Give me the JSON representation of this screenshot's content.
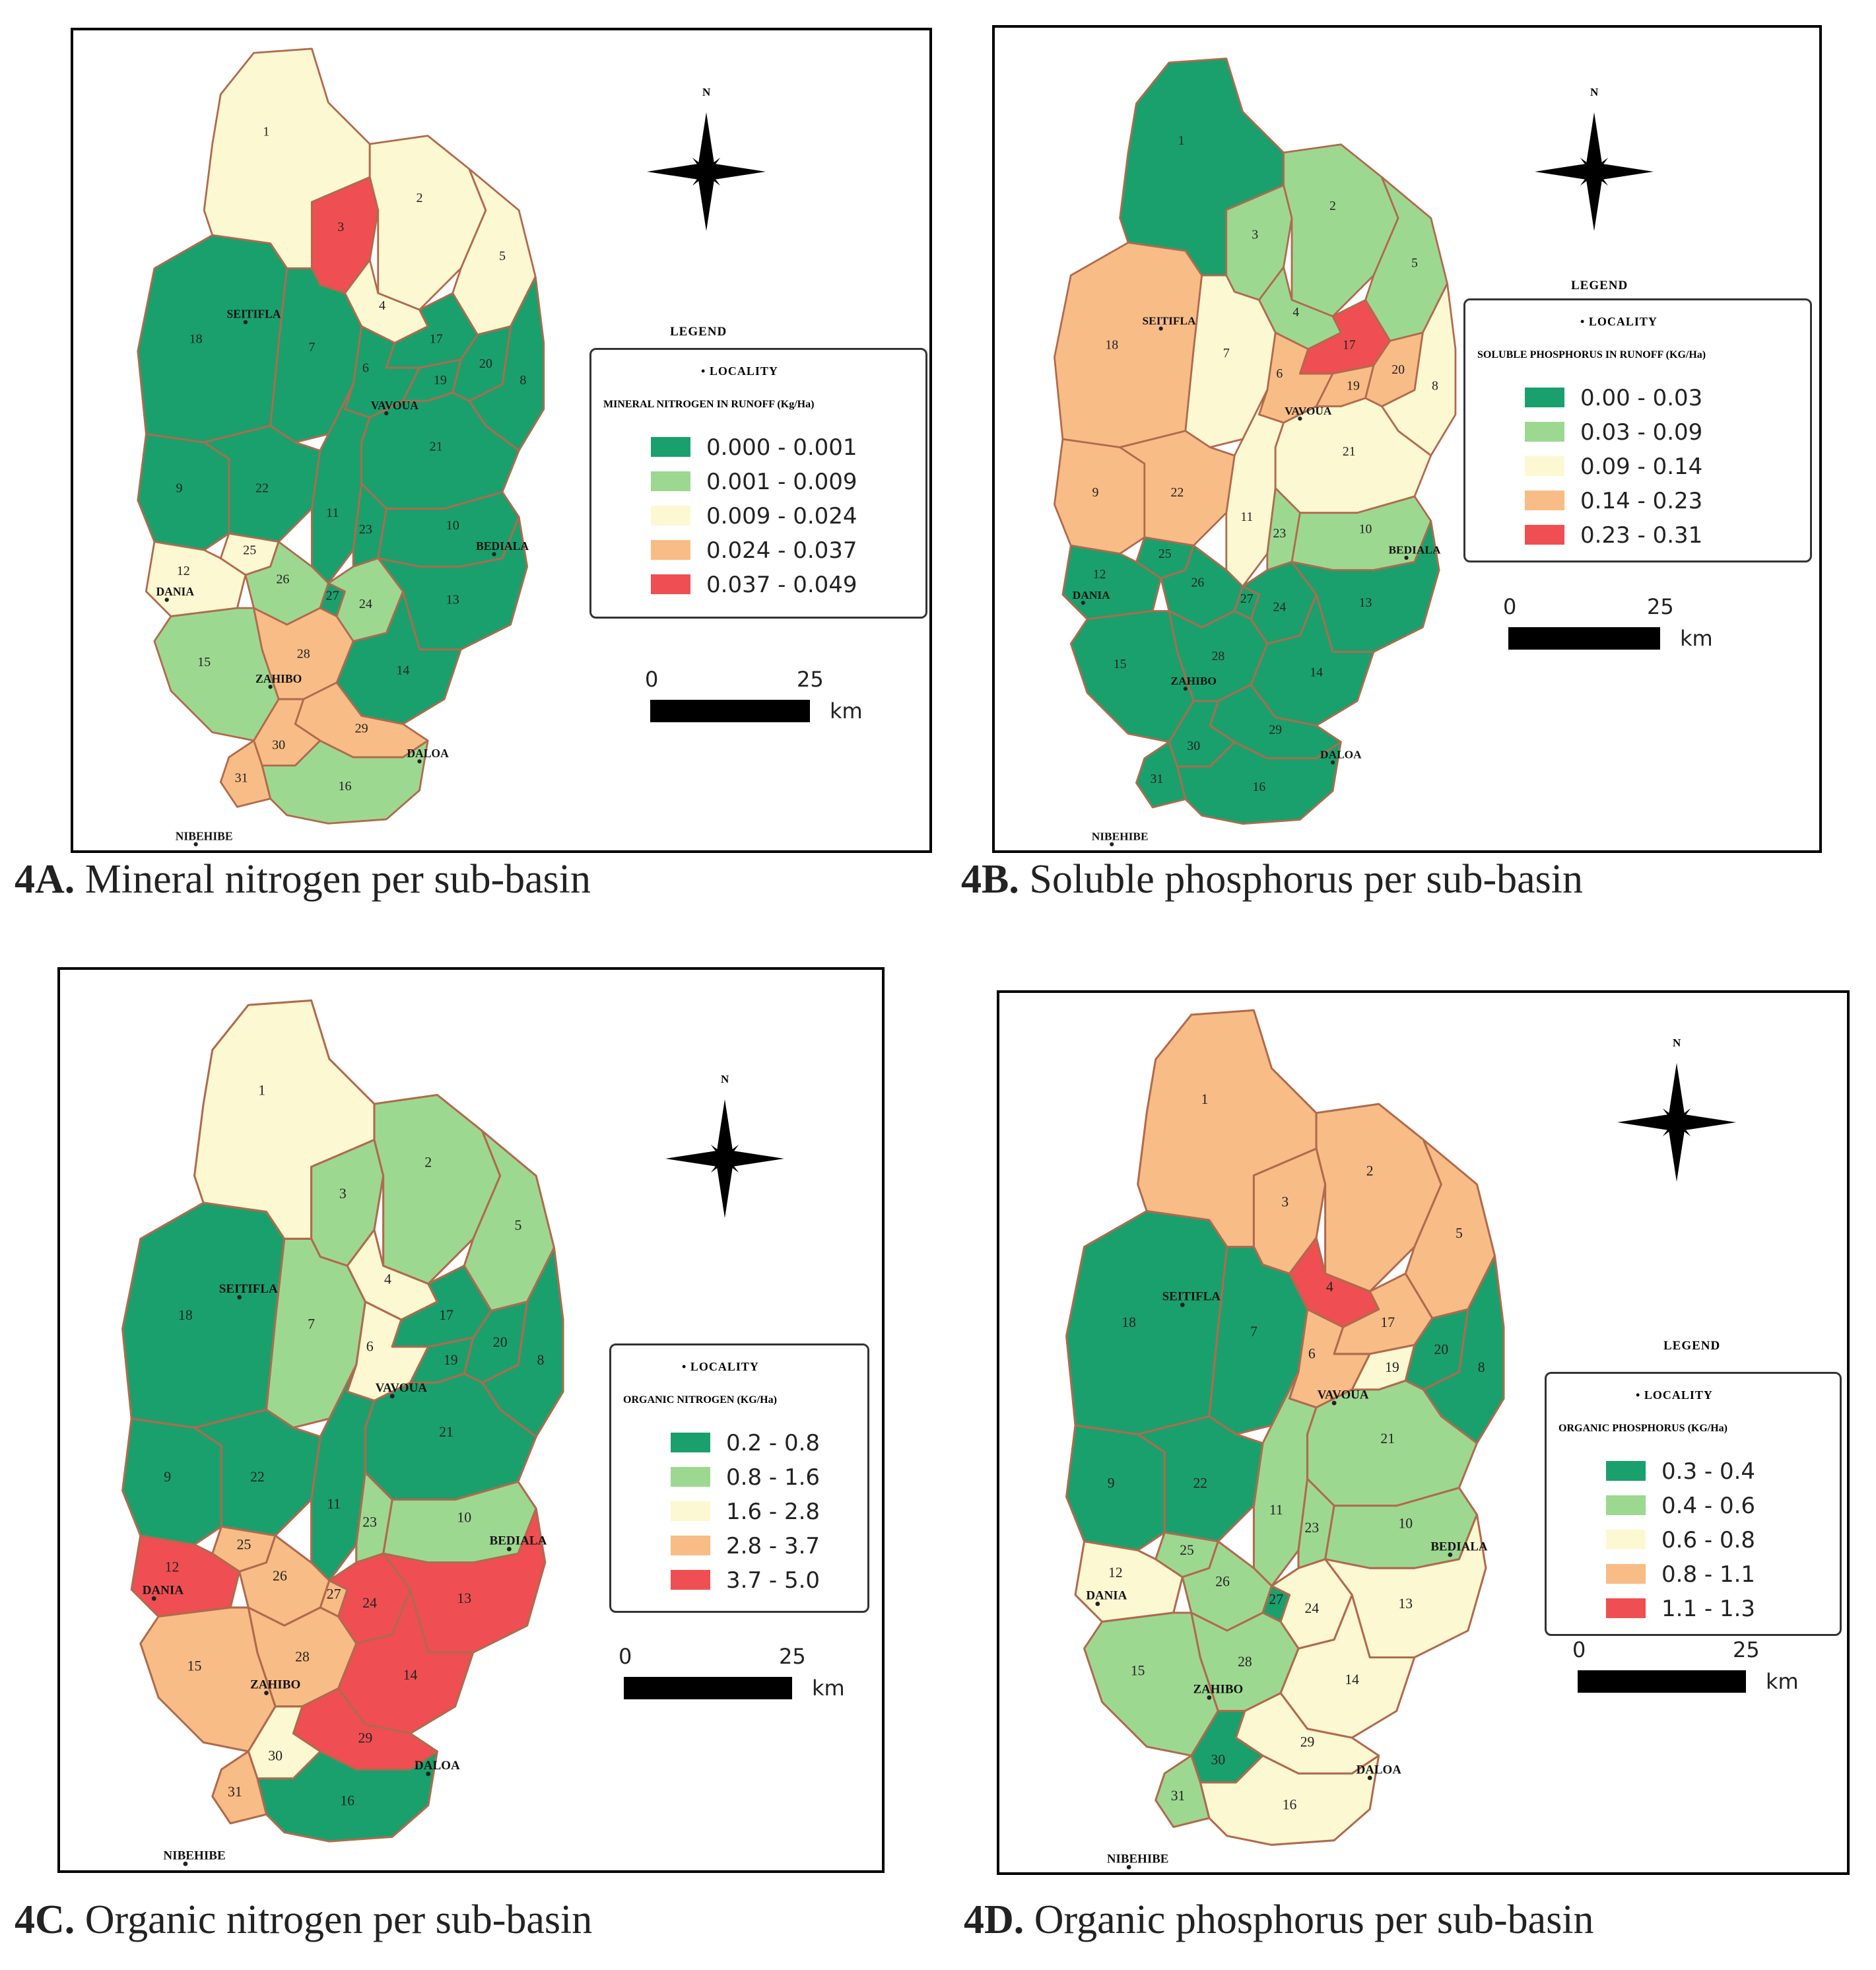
{
  "palette": {
    "c1": "#1aa06d",
    "c2": "#9dd891",
    "c3": "#fcf8d2",
    "c4": "#f8bc86",
    "c5": "#ef4f52",
    "border": "#b06a4d"
  },
  "common": {
    "legend_heading": "LEGEND",
    "locality_label": "LOCALITY",
    "north_letter": "N",
    "scale_start": "0",
    "scale_end": "25",
    "scale_unit": "km",
    "localities": [
      "SEITIFLA",
      "VAVOUA",
      "BEDIALA",
      "DANIA",
      "ZAHIBO",
      "DALOA",
      "NIBEHIBE"
    ]
  },
  "maps": [
    {
      "id": "4A",
      "caption_id": "4A.",
      "caption_text": " Mineral nitrogen per sub-basin",
      "variable_title": "MINERAL NITROGEN IN RUNOFF (Kg/Ha)",
      "classes": [
        "0.000 - 0.001",
        "0.001 - 0.009",
        "0.009 - 0.024",
        "0.024 - 0.037",
        "0.037 - 0.049"
      ],
      "subbasin_class": {
        "1": 3,
        "2": 3,
        "3": 5,
        "4": 3,
        "5": 3,
        "6": 1,
        "7": 1,
        "8": 1,
        "9": 1,
        "10": 1,
        "11": 1,
        "12": 3,
        "13": 1,
        "14": 1,
        "15": 2,
        "16": 2,
        "17": 1,
        "18": 1,
        "19": 1,
        "20": 1,
        "21": 1,
        "22": 1,
        "23": 1,
        "24": 2,
        "25": 3,
        "26": 2,
        "27": 1,
        "28": 4,
        "29": 4,
        "30": 4,
        "31": 4
      }
    },
    {
      "id": "4B",
      "caption_id": "4B.",
      "caption_text": " Soluble phosphorus per sub-basin",
      "variable_title": "SOLUBLE PHOSPHORUS IN RUNOFF (KG/Ha)",
      "classes": [
        "0.00 - 0.03",
        "0.03 - 0.09",
        "0.09 - 0.14",
        "0.14 - 0.23",
        "0.23 - 0.31"
      ],
      "subbasin_class": {
        "1": 1,
        "2": 2,
        "3": 2,
        "4": 2,
        "5": 2,
        "6": 4,
        "7": 3,
        "8": 3,
        "9": 4,
        "10": 2,
        "11": 3,
        "12": 1,
        "13": 1,
        "14": 1,
        "15": 1,
        "16": 1,
        "17": 5,
        "18": 4,
        "19": 4,
        "20": 4,
        "21": 3,
        "22": 4,
        "23": 2,
        "24": 1,
        "25": 1,
        "26": 1,
        "27": 1,
        "28": 1,
        "29": 1,
        "30": 1,
        "31": 1
      }
    },
    {
      "id": "4C",
      "caption_id": "4C.",
      "caption_text": " Organic nitrogen per sub-basin",
      "variable_title": "ORGANIC NITROGEN (KG/Ha)",
      "classes": [
        "0.2 - 0.8",
        "0.8 - 1.6",
        "1.6 - 2.8",
        "2.8 - 3.7",
        "3.7 - 5.0"
      ],
      "subbasin_class": {
        "1": 3,
        "2": 2,
        "3": 2,
        "4": 3,
        "5": 2,
        "6": 3,
        "7": 2,
        "8": 1,
        "9": 1,
        "10": 2,
        "11": 1,
        "12": 5,
        "13": 5,
        "14": 5,
        "15": 4,
        "16": 1,
        "17": 1,
        "18": 1,
        "19": 1,
        "20": 1,
        "21": 1,
        "22": 1,
        "23": 2,
        "24": 5,
        "25": 4,
        "26": 4,
        "27": 4,
        "28": 4,
        "29": 5,
        "30": 3,
        "31": 4
      }
    },
    {
      "id": "4D",
      "caption_id": "4D.",
      "caption_text": " Organic phosphorus per sub-basin",
      "variable_title": "ORGANIC PHOSPHORUS (KG/Ha)",
      "classes": [
        "0.3 - 0.4",
        "0.4 - 0.6",
        "0.6 - 0.8",
        "0.8 - 1.1",
        "1.1 - 1.3"
      ],
      "subbasin_class": {
        "1": 4,
        "2": 4,
        "3": 4,
        "4": 5,
        "5": 4,
        "6": 4,
        "7": 1,
        "8": 1,
        "9": 1,
        "10": 2,
        "11": 2,
        "12": 3,
        "13": 3,
        "14": 3,
        "15": 2,
        "16": 3,
        "17": 4,
        "18": 1,
        "19": 3,
        "20": 1,
        "21": 2,
        "22": 1,
        "23": 2,
        "24": 3,
        "25": 2,
        "26": 2,
        "27": 1,
        "28": 2,
        "29": 3,
        "30": 1,
        "31": 2
      }
    }
  ]
}
